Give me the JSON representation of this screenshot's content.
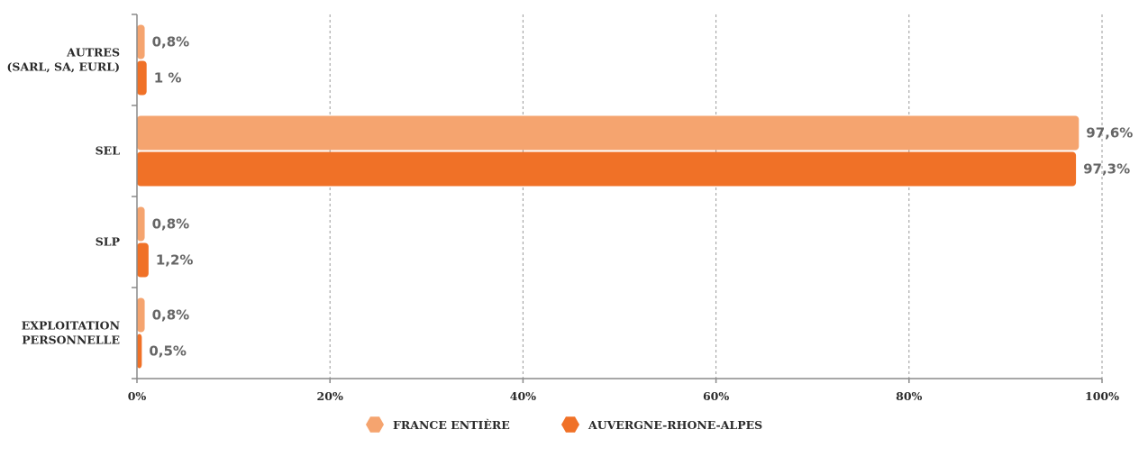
{
  "chart_data": {
    "type": "bar",
    "orientation": "horizontal",
    "categories": [
      [
        "AUTRES",
        "(SARL, SA, EURL)"
      ],
      [
        "SEL"
      ],
      [
        "SLP"
      ],
      [
        "EXPLOITATION",
        "PERSONNELLE"
      ]
    ],
    "series": [
      {
        "name": "FRANCE ENTIÈRE",
        "color": "#f5a46f",
        "values": [
          0.8,
          97.6,
          0.8,
          0.8
        ],
        "labels": [
          "0,8%",
          "97,6%",
          "0,8%",
          "0,8%"
        ]
      },
      {
        "name": "AUVERGNE-RHONE-ALPES",
        "color": "#f07127",
        "values": [
          1,
          97.3,
          1.2,
          0.5
        ],
        "labels": [
          "1 %",
          "97,3%",
          "1,2%",
          "0,5%"
        ]
      }
    ],
    "xlim": [
      0,
      100
    ],
    "xticks": [
      0,
      20,
      40,
      60,
      80,
      100
    ],
    "xtick_labels": [
      "0%",
      "20%",
      "40%",
      "60%",
      "80%",
      "100%"
    ],
    "grid": "vertical dashed",
    "legend_position": "bottom-center",
    "title": "",
    "xlabel": "",
    "ylabel": ""
  }
}
